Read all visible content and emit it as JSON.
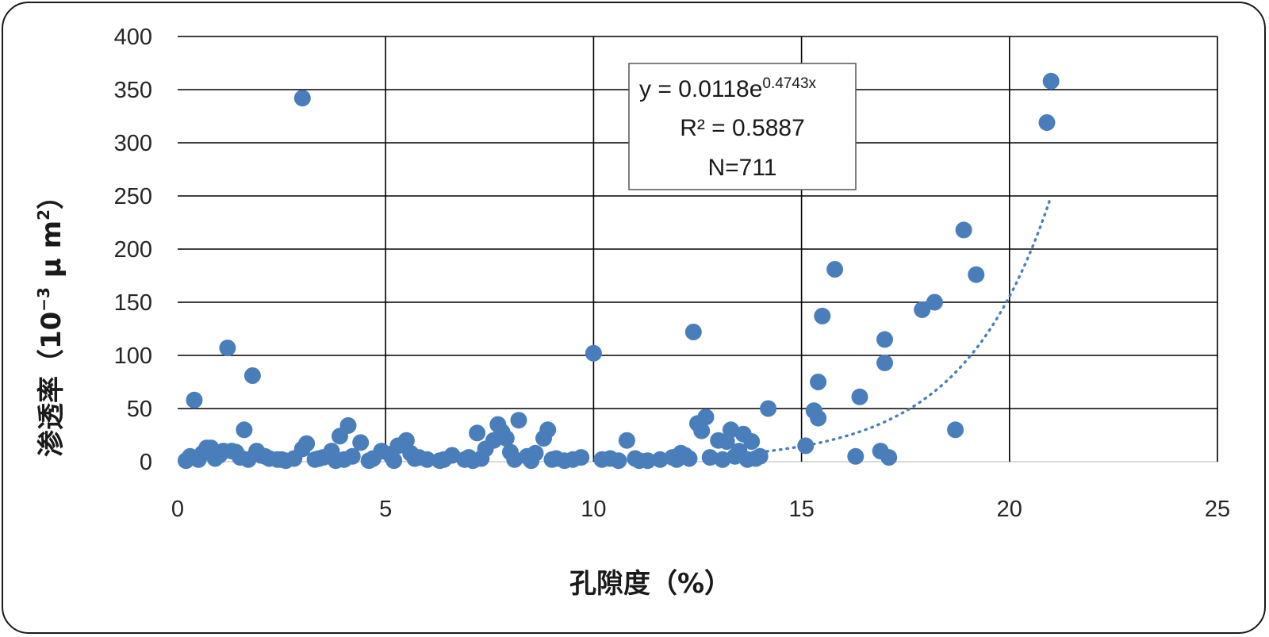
{
  "chart_data": {
    "type": "scatter",
    "title": "",
    "xlabel": "孔隙度（%）",
    "ylabel_main": "渗透率（10",
    "ylabel_sup1": "−3",
    "ylabel_mid": " μ m",
    "ylabel_sup2": "2",
    "ylabel_end": "）",
    "xlim": [
      0,
      25
    ],
    "ylim": [
      0,
      400
    ],
    "x_ticks": [
      0,
      5,
      10,
      15,
      20,
      25
    ],
    "y_ticks": [
      0,
      50,
      100,
      150,
      200,
      250,
      300,
      350,
      400
    ],
    "grid": true,
    "marker_color": "#4a7ebb",
    "trendline": {
      "type": "exponential",
      "a": 0.0118,
      "b": 0.4743,
      "x_range": [
        14.0,
        21.0
      ],
      "color": "#4a7ebb",
      "style": "dotted",
      "equation_prefix": "y = 0.0118e",
      "equation_exponent": "0.4743x",
      "r_squared": "R² = 0.5887",
      "n_label": "N=711"
    },
    "series": [
      {
        "points": [
          [
            0.4,
            58
          ],
          [
            1.2,
            107
          ],
          [
            1.8,
            81
          ],
          [
            3.0,
            342
          ],
          [
            1.6,
            30
          ],
          [
            4.1,
            34
          ],
          [
            3.9,
            24
          ],
          [
            4.4,
            18
          ],
          [
            3.1,
            17
          ],
          [
            3.0,
            12
          ],
          [
            3.7,
            10
          ],
          [
            1.9,
            10
          ],
          [
            0.7,
            13
          ],
          [
            0.8,
            13
          ],
          [
            1.1,
            10
          ],
          [
            1.3,
            10
          ],
          [
            1.4,
            9
          ],
          [
            0.3,
            5
          ],
          [
            0.2,
            1
          ],
          [
            0.5,
            2
          ],
          [
            0.9,
            3
          ],
          [
            1.0,
            6
          ],
          [
            1.5,
            4
          ],
          [
            2.0,
            6
          ],
          [
            2.2,
            3
          ],
          [
            2.4,
            2
          ],
          [
            2.6,
            1
          ],
          [
            2.8,
            3
          ],
          [
            3.3,
            2
          ],
          [
            3.5,
            4
          ],
          [
            3.8,
            1
          ],
          [
            4.2,
            5
          ],
          [
            4.6,
            1
          ],
          [
            4.9,
            10
          ],
          [
            5.1,
            7
          ],
          [
            5.3,
            15
          ],
          [
            5.5,
            20
          ],
          [
            5.6,
            8
          ],
          [
            5.8,
            4
          ],
          [
            6.0,
            2
          ],
          [
            6.3,
            1
          ],
          [
            6.6,
            6
          ],
          [
            6.9,
            2
          ],
          [
            7.1,
            1
          ],
          [
            7.2,
            27
          ],
          [
            7.4,
            12
          ],
          [
            7.6,
            20
          ],
          [
            7.7,
            35
          ],
          [
            7.8,
            28
          ],
          [
            7.9,
            22
          ],
          [
            8.0,
            9
          ],
          [
            8.2,
            39
          ],
          [
            8.4,
            5
          ],
          [
            8.6,
            8
          ],
          [
            8.8,
            22
          ],
          [
            8.9,
            30
          ],
          [
            9.1,
            3
          ],
          [
            9.3,
            1
          ],
          [
            9.5,
            2
          ],
          [
            9.7,
            4
          ],
          [
            10.0,
            102
          ],
          [
            10.2,
            2
          ],
          [
            10.4,
            3
          ],
          [
            10.6,
            1
          ],
          [
            10.8,
            20
          ],
          [
            11.0,
            3
          ],
          [
            11.3,
            1
          ],
          [
            11.6,
            2
          ],
          [
            11.9,
            4
          ],
          [
            12.1,
            8
          ],
          [
            12.3,
            3
          ],
          [
            12.4,
            122
          ],
          [
            12.5,
            36
          ],
          [
            12.6,
            29
          ],
          [
            12.7,
            42
          ],
          [
            12.8,
            4
          ],
          [
            13.0,
            20
          ],
          [
            13.2,
            19
          ],
          [
            13.3,
            30
          ],
          [
            13.4,
            5
          ],
          [
            13.5,
            10
          ],
          [
            13.6,
            26
          ],
          [
            13.7,
            2
          ],
          [
            13.8,
            19
          ],
          [
            14.0,
            5
          ],
          [
            14.2,
            50
          ],
          [
            15.1,
            15
          ],
          [
            15.3,
            48
          ],
          [
            15.4,
            75
          ],
          [
            15.4,
            41
          ],
          [
            15.5,
            137
          ],
          [
            15.8,
            181
          ],
          [
            16.3,
            5
          ],
          [
            16.4,
            61
          ],
          [
            16.9,
            10
          ],
          [
            17.0,
            93
          ],
          [
            17.0,
            115
          ],
          [
            17.1,
            4
          ],
          [
            17.9,
            143
          ],
          [
            18.2,
            150
          ],
          [
            18.7,
            30
          ],
          [
            18.9,
            218
          ],
          [
            19.2,
            176
          ],
          [
            20.9,
            319
          ],
          [
            21.0,
            358
          ],
          [
            0.6,
            8
          ],
          [
            1.7,
            2
          ],
          [
            2.1,
            5
          ],
          [
            2.5,
            2
          ],
          [
            3.4,
            3
          ],
          [
            4.0,
            2
          ],
          [
            4.7,
            3
          ],
          [
            5.2,
            1
          ],
          [
            5.7,
            3
          ],
          [
            6.4,
            2
          ],
          [
            7.0,
            4
          ],
          [
            7.3,
            3
          ],
          [
            8.1,
            2
          ],
          [
            8.5,
            1
          ],
          [
            9.0,
            2
          ],
          [
            11.1,
            1
          ],
          [
            12.0,
            2
          ],
          [
            12.2,
            6
          ],
          [
            13.1,
            2
          ],
          [
            13.9,
            3
          ]
        ]
      }
    ]
  }
}
